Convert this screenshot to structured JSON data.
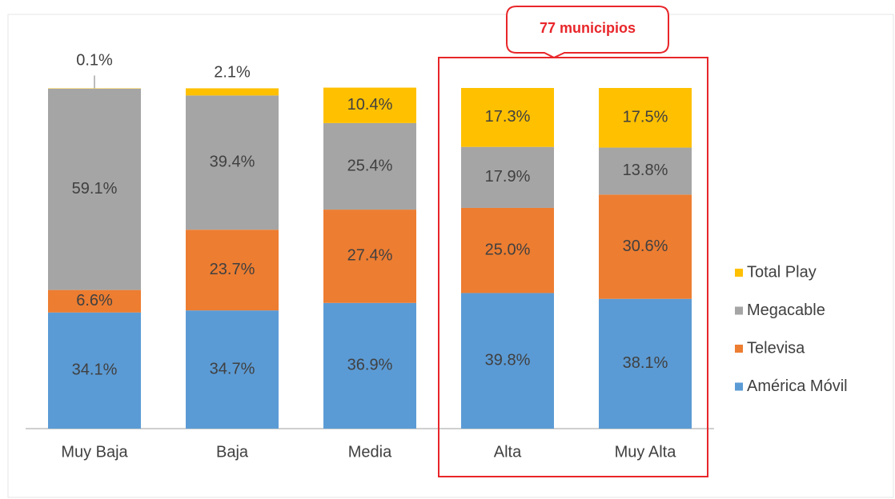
{
  "chart_data": {
    "type": "stacked_bar",
    "categories": [
      "Muy Baja",
      "Baja",
      "Media",
      "Alta",
      "Muy Alta"
    ],
    "series": [
      {
        "name": "América Móvil",
        "color": "#5b9bd5",
        "values": [
          34.1,
          34.7,
          36.9,
          39.8,
          38.1
        ],
        "value_labels": [
          "34.1%",
          "34.7%",
          "36.9%",
          "39.8%",
          "38.1%"
        ]
      },
      {
        "name": "Televisa",
        "color": "#ed7d31",
        "values": [
          6.6,
          23.7,
          27.4,
          25.0,
          30.6
        ],
        "value_labels": [
          "6.6%",
          "23.7%",
          "27.4%",
          "25.0%",
          "30.6%"
        ]
      },
      {
        "name": "Megacable",
        "color": "#a5a5a5",
        "values": [
          59.1,
          39.4,
          25.4,
          17.9,
          13.8
        ],
        "value_labels": [
          "59.1%",
          "39.4%",
          "25.4%",
          "17.9%",
          "13.8%"
        ]
      },
      {
        "name": "Total Play",
        "color": "#ffc000",
        "values": [
          0.1,
          2.1,
          10.4,
          17.3,
          17.5
        ],
        "value_labels": [
          "0.1%",
          "2.1%",
          "10.4%",
          "17.3%",
          "17.5%"
        ]
      }
    ],
    "ylim": [
      0,
      100
    ],
    "legend": "right",
    "annotation": {
      "text": "77 municipios",
      "color": "#e8262a"
    }
  }
}
